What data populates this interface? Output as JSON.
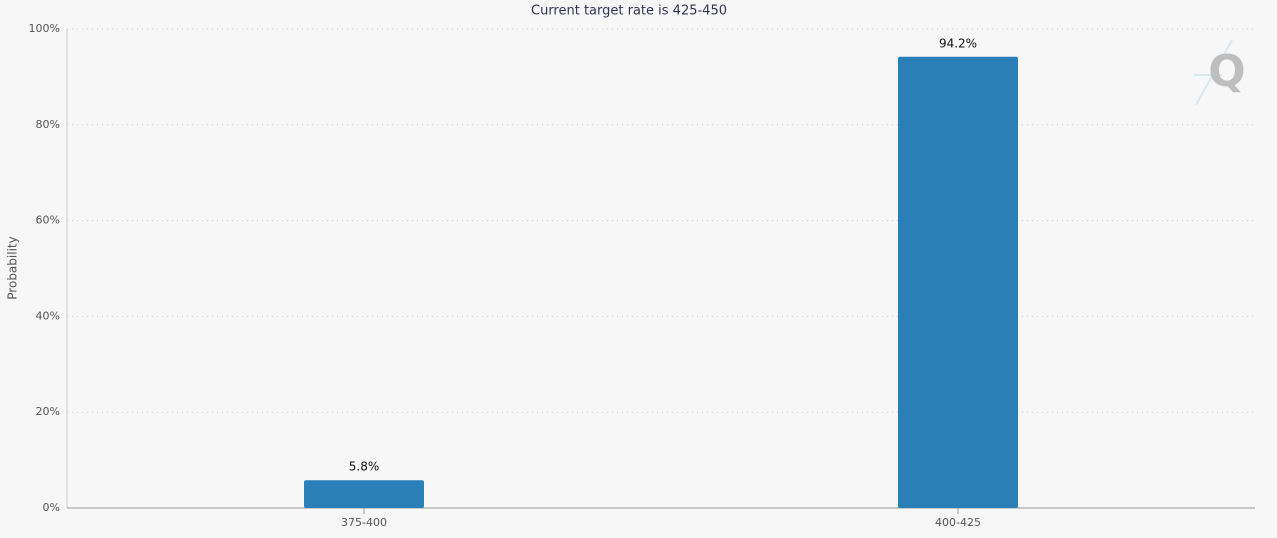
{
  "chart_data": {
    "type": "bar",
    "title": "Current target rate is 425-450",
    "y_label": "Probability",
    "categories": [
      "375-400",
      "400-425"
    ],
    "values": [
      5.8,
      94.2
    ],
    "value_labels": [
      "5.8%",
      "94.2%"
    ],
    "color": "#2a7fb8",
    "ylim": [
      0,
      100
    ],
    "yticks": [
      {
        "value": 0,
        "label": "0%"
      },
      {
        "value": 20,
        "label": "20%"
      },
      {
        "value": 40,
        "label": "40%"
      },
      {
        "value": 60,
        "label": "60%"
      },
      {
        "value": 80,
        "label": "80%"
      },
      {
        "value": 100,
        "label": "100%"
      }
    ],
    "grid": true
  }
}
